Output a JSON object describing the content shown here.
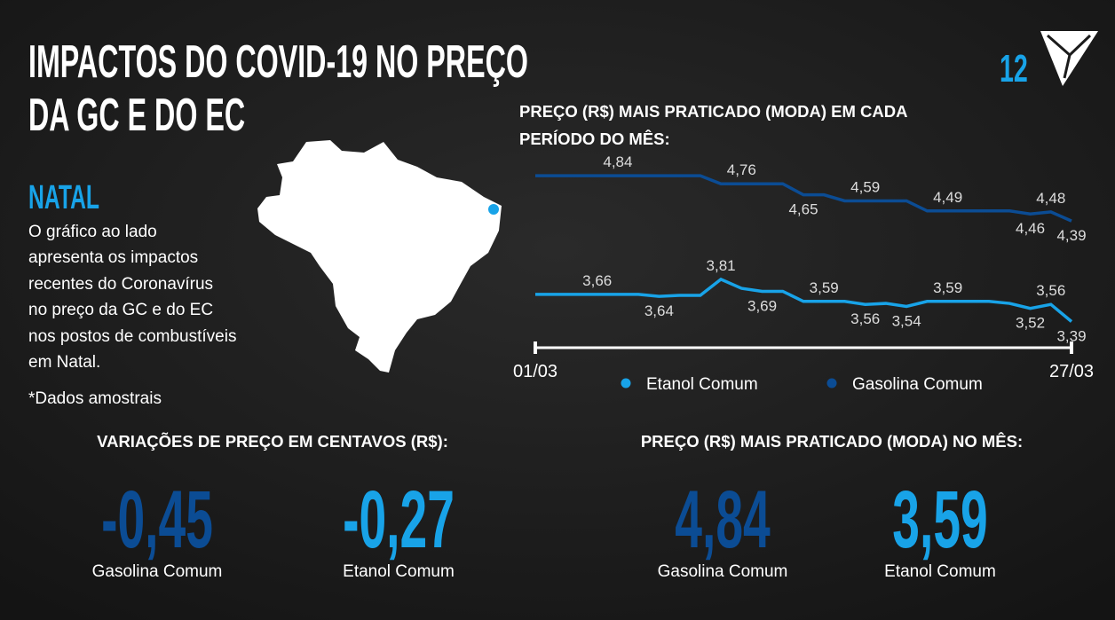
{
  "header": {
    "title": [
      "IMPACTOS DO COVID-19 NO PREÇO",
      "DA GC E DO EC"
    ],
    "page_number": "12"
  },
  "sidebar": {
    "city": "NATAL",
    "description": [
      "O gráfico ao lado",
      "apresenta os impactos",
      "recentes do Coronavírus",
      "no preço da GC e do EC",
      "nos postos de combustíveis",
      "em Natal."
    ],
    "note": "*Dados amostrais"
  },
  "chart_data": {
    "type": "line",
    "title": [
      "PREÇO (R$) MAIS PRATICADO (MODA) EM CADA",
      "PERÍODO DO MÊS:"
    ],
    "categories": [
      "01/03",
      null,
      null,
      null,
      null,
      null,
      null,
      null,
      null,
      null,
      null,
      null,
      null,
      null,
      null,
      null,
      null,
      null,
      null,
      null,
      null,
      null,
      null,
      null,
      null,
      null,
      "27/03"
    ],
    "ylim": [
      3.2,
      5.0
    ],
    "series": [
      {
        "name": "Etanol Comum",
        "color": "#18a3e8",
        "values": [
          3.66,
          3.66,
          3.66,
          3.66,
          3.66,
          3.66,
          3.64,
          3.65,
          3.65,
          3.81,
          3.72,
          3.69,
          3.69,
          3.59,
          3.59,
          3.59,
          3.56,
          3.57,
          3.54,
          3.59,
          3.59,
          3.59,
          3.59,
          3.57,
          3.52,
          3.56,
          3.39
        ],
        "value_labels": [
          null,
          null,
          null,
          "3,66",
          null,
          null,
          "3,64",
          null,
          null,
          "3,81",
          null,
          "3,69",
          null,
          null,
          "3,59",
          null,
          "3,56",
          null,
          "3,54",
          null,
          "3,59",
          null,
          null,
          null,
          "3,52",
          "3,56",
          "3,39"
        ]
      },
      {
        "name": "Gasolina Comum",
        "color": "#0b4c94",
        "values": [
          4.84,
          4.84,
          4.84,
          4.84,
          4.84,
          4.84,
          4.84,
          4.84,
          4.84,
          4.76,
          4.76,
          4.76,
          4.76,
          4.65,
          4.65,
          4.59,
          4.59,
          4.59,
          4.59,
          4.49,
          4.49,
          4.49,
          4.49,
          4.49,
          4.46,
          4.48,
          4.39
        ],
        "value_labels": [
          null,
          null,
          null,
          null,
          "4,84",
          null,
          null,
          null,
          null,
          null,
          "4,76",
          null,
          null,
          "4,65",
          null,
          null,
          "4,59",
          null,
          null,
          null,
          "4,49",
          null,
          null,
          null,
          "4,46",
          "4,48",
          "4,39"
        ]
      }
    ]
  },
  "variations": {
    "title": "VARIAÇÕES DE PREÇO EM CENTAVOS (R$):",
    "items": [
      {
        "value": "-0,45",
        "label": "Gasolina Comum"
      },
      {
        "value": "-0,27",
        "label": "Etanol Comum"
      }
    ]
  },
  "month_mode": {
    "title": "PREÇO (R$) MAIS PRATICADO (MODA) NO MÊS:",
    "items": [
      {
        "value": "4,84",
        "label": "Gasolina Comum"
      },
      {
        "value": "3,59",
        "label": "Etanol Comum"
      }
    ]
  }
}
